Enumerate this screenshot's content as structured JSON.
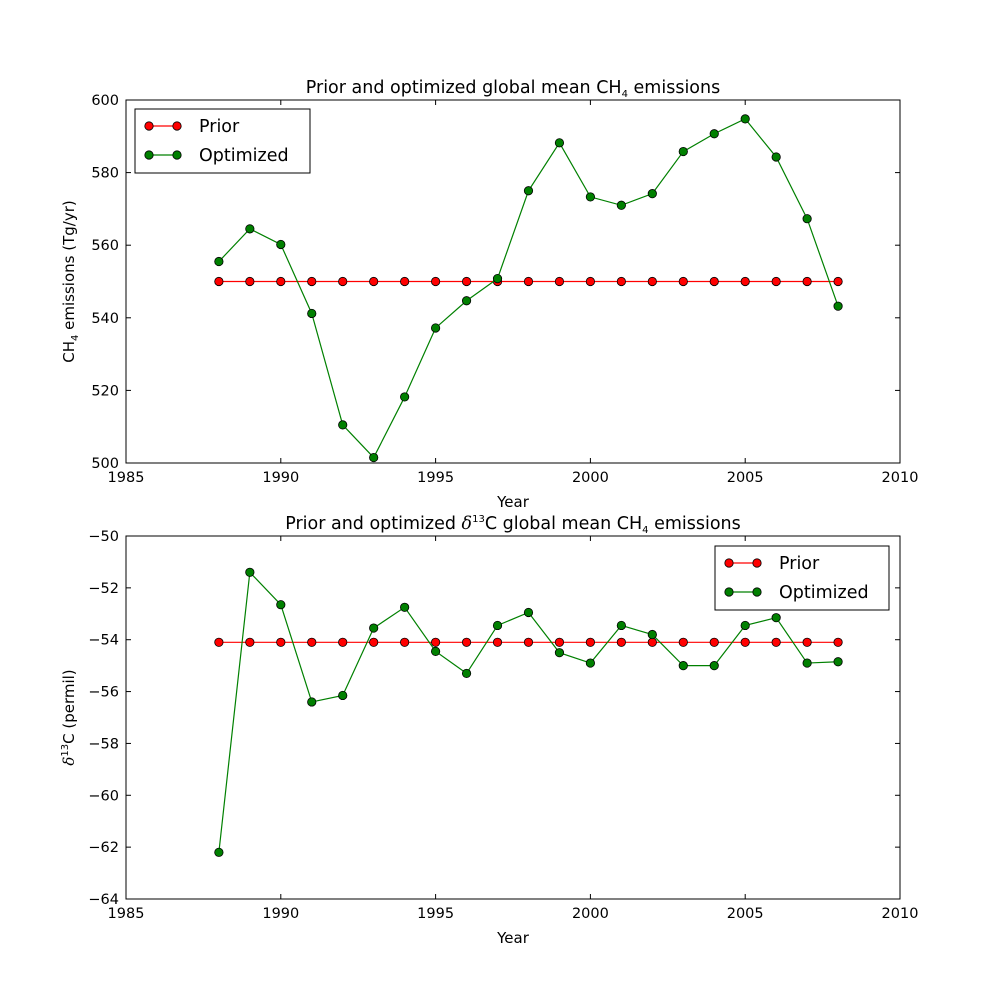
{
  "chart_data": [
    {
      "type": "line",
      "title": {
        "pre": "Prior and optimized global mean CH",
        "sub": "4",
        "post": " emissions"
      },
      "xlabel": "Year",
      "ylabel": {
        "pre": "CH",
        "sub": "4",
        "post": " emissions (Tg/yr)"
      },
      "xlim": [
        1985,
        2010
      ],
      "ylim": [
        500,
        600
      ],
      "xticks": [
        1985,
        1990,
        1995,
        2000,
        2005,
        2010
      ],
      "yticks": [
        500,
        520,
        540,
        560,
        580,
        600
      ],
      "x": [
        1988,
        1989,
        1990,
        1991,
        1992,
        1993,
        1994,
        1995,
        1996,
        1997,
        1998,
        1999,
        2000,
        2001,
        2002,
        2003,
        2004,
        2005,
        2006,
        2007,
        2008
      ],
      "legend_position": "upper-left",
      "series": [
        {
          "name": "Prior",
          "color": "#ff0000",
          "line_color": "#ff0000",
          "values": [
            550,
            550,
            550,
            550,
            550,
            550,
            550,
            550,
            550,
            550,
            550,
            550,
            550,
            550,
            550,
            550,
            550,
            550,
            550,
            550,
            550
          ]
        },
        {
          "name": "Optimized",
          "color": "#008000",
          "line_color": "#008000",
          "values": [
            555.5,
            564.5,
            560.2,
            541.2,
            510.5,
            501.5,
            518.2,
            537.2,
            544.7,
            550.8,
            575.0,
            588.2,
            573.3,
            571.0,
            574.2,
            585.8,
            590.7,
            594.8,
            584.3,
            567.3,
            543.2
          ]
        }
      ]
    },
    {
      "type": "line",
      "title": {
        "pre": "Prior and optimized ",
        "delta": "δ",
        "sup": "13",
        "mid": "C global mean CH",
        "sub": "4",
        "post": " emissions"
      },
      "xlabel": "Year",
      "ylabel": {
        "delta": "δ",
        "sup": "13",
        "post": "C (permil)"
      },
      "xlim": [
        1985,
        2010
      ],
      "ylim": [
        -64,
        -50
      ],
      "xticks": [
        1985,
        1990,
        1995,
        2000,
        2005,
        2010
      ],
      "yticks": [
        -64,
        -62,
        -60,
        -58,
        -56,
        -54,
        -52,
        -50
      ],
      "x": [
        1988,
        1989,
        1990,
        1991,
        1992,
        1993,
        1994,
        1995,
        1996,
        1997,
        1998,
        1999,
        2000,
        2001,
        2002,
        2003,
        2004,
        2005,
        2006,
        2007,
        2008
      ],
      "legend_position": "upper-right",
      "series": [
        {
          "name": "Prior",
          "color": "#ff0000",
          "line_color": "#ff0000",
          "values": [
            -54.1,
            -54.1,
            -54.1,
            -54.1,
            -54.1,
            -54.1,
            -54.1,
            -54.1,
            -54.1,
            -54.1,
            -54.1,
            -54.1,
            -54.1,
            -54.1,
            -54.1,
            -54.1,
            -54.1,
            -54.1,
            -54.1,
            -54.1,
            -54.1
          ]
        },
        {
          "name": "Optimized",
          "color": "#008000",
          "line_color": "#008000",
          "values": [
            -62.2,
            -51.4,
            -52.65,
            -56.4,
            -56.15,
            -53.55,
            -52.75,
            -54.45,
            -55.3,
            -53.45,
            -52.95,
            -54.5,
            -54.9,
            -53.45,
            -53.8,
            -55.0,
            -55.0,
            -53.45,
            -53.15,
            -54.9,
            -54.85
          ]
        }
      ]
    }
  ]
}
